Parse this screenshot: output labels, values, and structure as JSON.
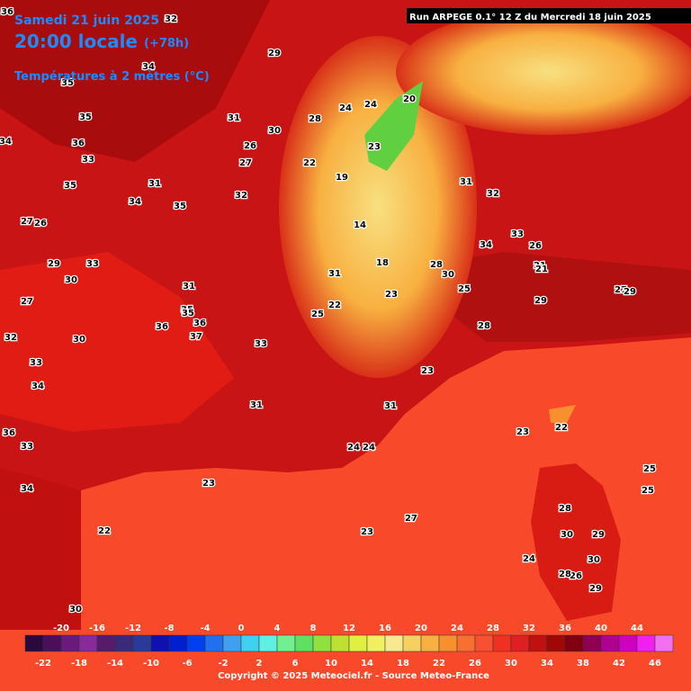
{
  "header": {
    "date": "Samedi 21 juin 2025",
    "time": "20:00 locale",
    "lead": "(+78h)",
    "field": "Températures à 2 mètres (°C)",
    "run": "Run ARPEGE 0.1° 12 Z du Mercredi 18 juin 2025"
  },
  "legend": {
    "colors": [
      "#2a0a3a",
      "#4b0f5a",
      "#6a1a7a",
      "#8a2a9a",
      "#5a1a6a",
      "#3a2a7a",
      "#2a3a9a",
      "#1010b0",
      "#0020d0",
      "#0040f0",
      "#2070f0",
      "#40a0f0",
      "#40d0f0",
      "#60f0e0",
      "#70f090",
      "#60e060",
      "#90e040",
      "#c0e030",
      "#e0f040",
      "#f0f060",
      "#f8e890",
      "#f8d060",
      "#f8b040",
      "#f89030",
      "#f87030",
      "#f85030",
      "#f03020",
      "#e02020",
      "#c01010",
      "#a00808",
      "#800010",
      "#900050",
      "#b00090",
      "#d000c0",
      "#f020f0",
      "#f070f0"
    ],
    "top_labels": [
      -20,
      -16,
      -12,
      -8,
      -4,
      0,
      4,
      8,
      12,
      16,
      20,
      24,
      28,
      32,
      36,
      40,
      44
    ],
    "bottom_labels": [
      -22,
      -18,
      -14,
      -10,
      -6,
      -2,
      2,
      6,
      10,
      14,
      18,
      22,
      26,
      30,
      34,
      38,
      42,
      46
    ]
  },
  "footer": "Copyright © 2025 Meteociel.fr - Source Meteo-France",
  "map_labels": [
    36,
    32,
    34,
    35,
    34,
    35,
    36,
    33,
    35,
    34,
    27,
    26,
    29,
    30,
    27,
    31,
    33,
    35,
    36,
    36,
    32,
    30,
    33,
    34,
    36,
    31,
    32,
    33,
    31,
    27,
    26,
    29,
    30,
    28,
    31,
    35,
    24,
    23,
    22,
    20,
    19,
    14,
    18,
    22,
    23,
    24,
    31,
    32,
    34,
    33,
    28,
    30,
    25,
    23,
    26,
    21,
    27,
    28,
    29,
    23,
    24,
    22,
    23,
    27,
    23,
    25,
    24,
    28,
    29,
    30,
    26,
    28,
    30,
    29,
    23,
    31,
    31,
    33,
    24,
    25,
    37,
    34,
    30,
    35,
    22,
    29,
    21,
    25
  ]
}
